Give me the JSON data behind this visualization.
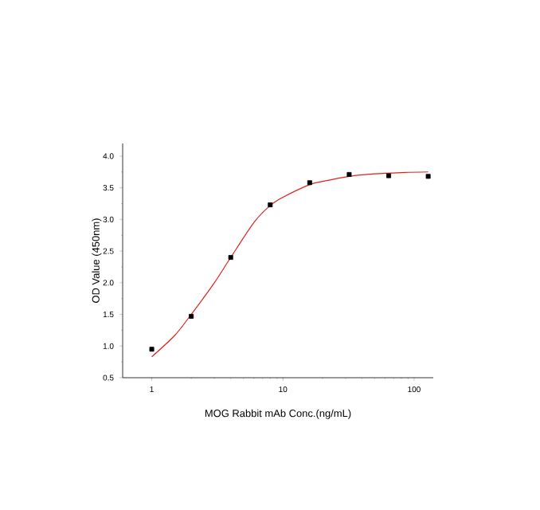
{
  "chart_data": {
    "type": "scatter",
    "xlabel": "MOG Rabbit mAb Conc.(ng/mL)",
    "ylabel": "OD Value (450nm)",
    "log": "x",
    "xlim": [
      0.6,
      140
    ],
    "ylim": [
      0.5,
      4.2
    ],
    "xticks": [
      1,
      10,
      100
    ],
    "yticks": [
      0.5,
      {
        "value": 1,
        "label": "1.0"
      },
      1.5,
      {
        "value": 2,
        "label": "2.0"
      },
      2.5,
      {
        "value": 3,
        "label": "3.0"
      },
      3.5,
      {
        "value": 4,
        "label": "4.0"
      }
    ],
    "grid": false,
    "series": [
      {
        "color": "#000000",
        "marker": "square",
        "x": [
          1,
          2,
          4,
          8,
          16,
          32,
          64,
          128
        ],
        "values": [
          0.95,
          1.47,
          2.4,
          3.23,
          3.58,
          3.71,
          3.69,
          3.68
        ]
      },
      {
        "type": "line",
        "color": "#e0201f",
        "marker": "none",
        "line_style": "solid",
        "x": [
          1,
          1.5,
          2,
          3,
          4,
          6,
          8,
          10,
          16,
          20,
          32,
          50,
          80,
          128
        ],
        "values": [
          0.83,
          1.17,
          1.5,
          2.0,
          2.4,
          2.95,
          3.22,
          3.35,
          3.55,
          3.6,
          3.68,
          3.72,
          3.74,
          3.75
        ]
      }
    ]
  }
}
